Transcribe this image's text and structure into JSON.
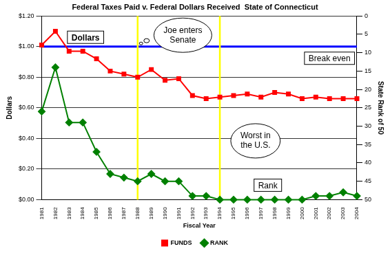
{
  "chart_data": {
    "type": "line",
    "title": "Federal Taxes Paid v. Federal Dollars Received  State of Connecticut",
    "x_label": "Fiscal Year",
    "y_label": "Dollars",
    "y2_label": "State Rank of 50",
    "categories": [
      "1981",
      "1982",
      "1983",
      "1984",
      "1985",
      "1986",
      "1987",
      "1988",
      "1989",
      "1990",
      "1991",
      "1992",
      "1993",
      "1994",
      "1995",
      "1996",
      "1997",
      "1998",
      "1999",
      "2000",
      "2001",
      "2002",
      "2003",
      "2004"
    ],
    "series": [
      {
        "name": "FUNDS",
        "color": "#ff0000",
        "marker": "square",
        "values": [
          1.01,
          1.1,
          0.97,
          0.97,
          0.92,
          0.84,
          0.82,
          0.8,
          0.85,
          0.78,
          0.79,
          0.68,
          0.66,
          0.67,
          0.68,
          0.69,
          0.67,
          0.7,
          0.69,
          0.66,
          0.67,
          0.66,
          0.66,
          0.66
        ]
      },
      {
        "name": "RANK",
        "color": "#008000",
        "marker": "diamond",
        "axis": "y2",
        "values": [
          26,
          14,
          29,
          29,
          37,
          43,
          44,
          45,
          43,
          45,
          45,
          49,
          49,
          50,
          50,
          50,
          50,
          50,
          50,
          50,
          49,
          49,
          48,
          49
        ]
      }
    ],
    "ylim": [
      0,
      1.2
    ],
    "yticks": [
      {
        "value": 0,
        "label": "$0.00"
      },
      {
        "value": 0.2,
        "label": "$0.20"
      },
      {
        "value": 0.4,
        "label": "$0.40"
      },
      {
        "value": 0.6,
        "label": "$0.60"
      },
      {
        "value": 0.8,
        "label": "$0.80"
      },
      {
        "value": 1.0,
        "label": "$1.00"
      },
      {
        "value": 1.2,
        "label": "$1.20"
      }
    ],
    "y2lim": [
      50,
      0
    ],
    "y2ticks": [
      0,
      5,
      10,
      15,
      20,
      25,
      30,
      35,
      40,
      45,
      50
    ],
    "grid": true,
    "legend": "bottom",
    "reference_lines": [
      {
        "axis": "y",
        "value": 1.0,
        "label": "Break even",
        "color": "#0000ff"
      },
      {
        "axis": "x",
        "value": "1988",
        "label": "Joe enters Senate",
        "color": "#ffff00"
      },
      {
        "axis": "x",
        "value": "1994",
        "label": "Worst in the U.S.",
        "color": "#ffff00"
      }
    ],
    "annotations": [
      "Dollars",
      "Rank"
    ]
  }
}
